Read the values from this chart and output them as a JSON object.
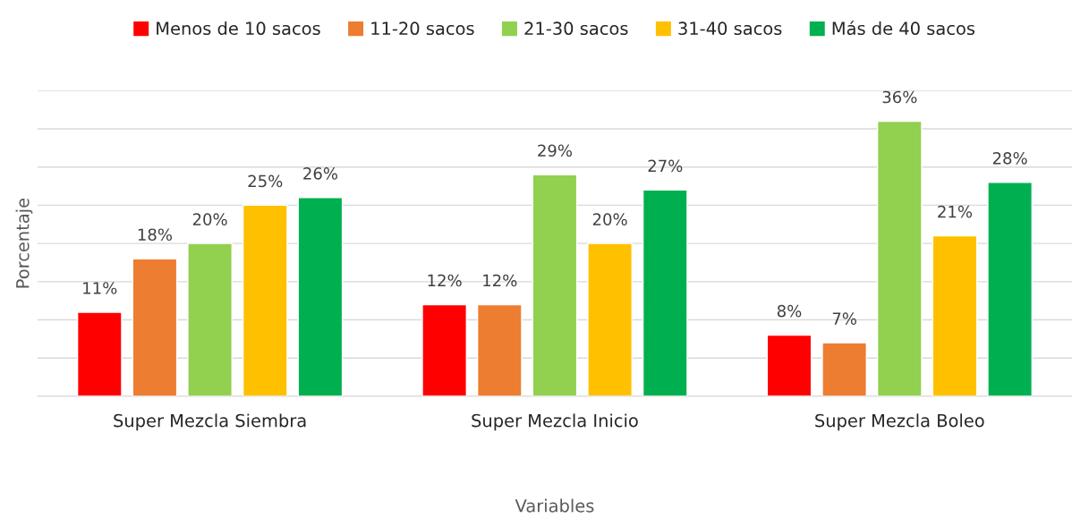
{
  "chart_data": {
    "type": "bar",
    "xlabel": "Variables",
    "ylabel": "Porcentaje",
    "categories": [
      "Super Mezcla Siembra",
      "Super Mezcla Inicio",
      "Super Mezcla Boleo"
    ],
    "series": [
      {
        "name": "Menos de 10 sacos",
        "color": "#ff0000",
        "values": [
          11,
          12,
          8
        ],
        "value_labels": [
          "11%",
          "12%",
          "8%"
        ]
      },
      {
        "name": "11-20 sacos",
        "color": "#ed7d31",
        "values": [
          18,
          12,
          7
        ],
        "value_labels": [
          "18%",
          "12%",
          "7%"
        ]
      },
      {
        "name": "21-30 sacos",
        "color": "#92d050",
        "values": [
          20,
          29,
          36
        ],
        "value_labels": [
          "20%",
          "29%",
          "36%"
        ]
      },
      {
        "name": "31-40 sacos",
        "color": "#ffc000",
        "values": [
          25,
          20,
          21
        ],
        "value_labels": [
          "25%",
          "20%",
          "21%"
        ]
      },
      {
        "name": "Más de 40 sacos",
        "color": "#00b050",
        "values": [
          26,
          27,
          28
        ],
        "value_labels": [
          "26%",
          "27%",
          "28%"
        ]
      }
    ],
    "ylim": [
      0,
      40
    ],
    "yticks": [
      {
        "value": 0,
        "label": null
      },
      {
        "value": 5,
        "label": null
      },
      {
        "value": 10,
        "label": null
      },
      {
        "value": 15,
        "label": null
      },
      {
        "value": 20,
        "label": null
      },
      {
        "value": 25,
        "label": null
      },
      {
        "value": 30,
        "label": null
      },
      {
        "value": 35,
        "label": null
      },
      {
        "value": 40,
        "label": null
      }
    ],
    "grid": "y",
    "legend": "top",
    "tick_labels": "x"
  }
}
